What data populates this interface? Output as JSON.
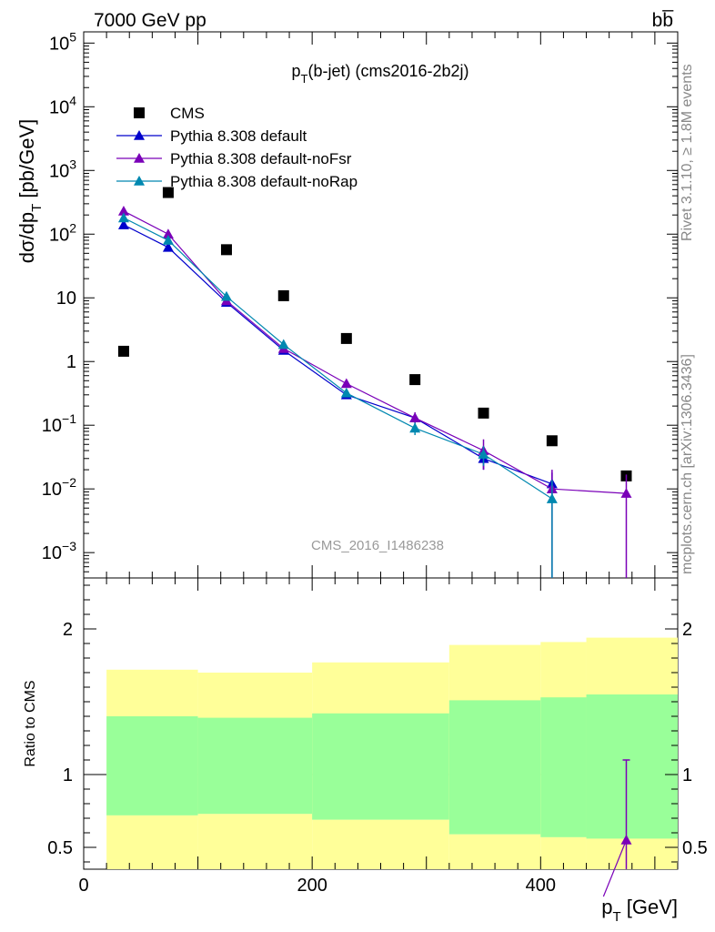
{
  "header": {
    "energy_label": "7000 GeV pp",
    "process_label": "bb̅",
    "plot_title": "p_T(b-jet) (cms2016-2b2j)",
    "watermark": "CMS_2016_I1486238",
    "rivet_label": "Rivet 3.1.10, ≥ 1.8M events",
    "site_label": "mcplots.cern.ch [arXiv:1306.3436]"
  },
  "legend": {
    "entries": [
      {
        "label": "CMS",
        "color": "#000000",
        "marker": "square"
      },
      {
        "label": "Pythia 8.308 default",
        "color": "#0000cc",
        "marker": "triangle"
      },
      {
        "label": "Pythia 8.308 default-noFsr",
        "color": "#7a00b8",
        "marker": "triangle"
      },
      {
        "label": "Pythia 8.308 default-noRap",
        "color": "#0088b0",
        "marker": "triangle"
      }
    ]
  },
  "chart_data": [
    {
      "type": "scatter",
      "title": "p_T(b-jet) (cms2016-2b2j)",
      "ylabel": "dσ/dp_T [pb/GeV]",
      "xlabel": "p_T [GeV]",
      "yscale": "log",
      "xlim": [
        0,
        520
      ],
      "ylim": [
        0.0004,
        150000
      ],
      "y_ticks": [
        {
          "v": 0.001,
          "base": "10",
          "exp": "−3"
        },
        {
          "v": 0.01,
          "base": "10",
          "exp": "−2"
        },
        {
          "v": 0.1,
          "base": "10",
          "exp": "−1"
        },
        {
          "v": 1,
          "base": "1",
          "exp": ""
        },
        {
          "v": 10,
          "base": "10",
          "exp": ""
        },
        {
          "v": 100,
          "base": "10",
          "exp": "2"
        },
        {
          "v": 1000,
          "base": "10",
          "exp": "3"
        },
        {
          "v": 10000,
          "base": "10",
          "exp": "4"
        },
        {
          "v": 100000,
          "base": "10",
          "exp": "5"
        }
      ],
      "series": [
        {
          "name": "CMS",
          "color": "#000000",
          "x": [
            35,
            74,
            125,
            175,
            230,
            290,
            350,
            410,
            475
          ],
          "y": [
            1.45,
            450,
            57,
            10.8,
            2.3,
            0.52,
            0.155,
            0.057,
            0.016
          ]
        },
        {
          "name": "Pythia 8.308 default",
          "color": "#0000cc",
          "x": [
            35,
            74,
            125,
            175,
            230,
            290,
            350,
            410
          ],
          "y": [
            140,
            62,
            8.5,
            1.5,
            0.3,
            0.13,
            0.03,
            0.012
          ],
          "yerr": [
            0,
            0,
            0,
            0,
            0,
            0.02,
            0.01,
            0.006
          ]
        },
        {
          "name": "Pythia 8.308 default-noFsr",
          "color": "#7a00b8",
          "x": [
            35,
            74,
            125,
            175,
            230,
            290,
            350,
            410,
            475
          ],
          "y": [
            230,
            100,
            9.0,
            1.6,
            0.45,
            0.13,
            0.04,
            0.01,
            0.0085
          ],
          "yerr": [
            0,
            0,
            0,
            0,
            0,
            0.03,
            0.02,
            0.01,
            0.0083
          ]
        },
        {
          "name": "Pythia 8.308 default-noRap",
          "color": "#0088b0",
          "x": [
            35,
            74,
            125,
            175,
            230,
            290,
            350,
            410
          ],
          "y": [
            180,
            80,
            10.5,
            1.85,
            0.32,
            0.09,
            0.035,
            0.007
          ],
          "yerr": [
            0,
            0,
            0,
            0,
            0,
            0.02,
            0.012,
            0.0068
          ]
        }
      ]
    },
    {
      "type": "area",
      "ylabel": "Ratio to CMS",
      "xlabel": "p_T [GeV]",
      "xlim": [
        0,
        520
      ],
      "ylim": [
        0.35,
        2.35
      ],
      "x_ticks": [
        0,
        200,
        400
      ],
      "y_ticks": [
        0.5,
        1,
        2
      ],
      "bands": {
        "bin_edges": [
          20,
          100,
          200,
          320,
          400,
          440,
          520
        ],
        "yellow_color": "#ffff99",
        "green_color": "#99ff99",
        "yellow_low": [
          0.72,
          0.73,
          0.69,
          0.59,
          0.57,
          0.56
        ],
        "yellow_high": [
          1.72,
          1.7,
          1.77,
          1.89,
          1.91,
          1.94
        ],
        "green_low": [
          0.72,
          0.73,
          0.69,
          0.59,
          0.57,
          0.56
        ],
        "green_high": [
          1.4,
          1.39,
          1.42,
          1.51,
          1.53,
          1.55
        ]
      },
      "series": [
        {
          "name": "Pythia 8.308 default-noFsr",
          "color": "#7a00b8",
          "x": [
            475
          ],
          "y": [
            0.55
          ],
          "yerr_low": [
            0.2
          ],
          "yerr_high": [
            0.55
          ],
          "line_from": {
            "x": 455,
            "y": 0.33
          }
        }
      ]
    }
  ]
}
